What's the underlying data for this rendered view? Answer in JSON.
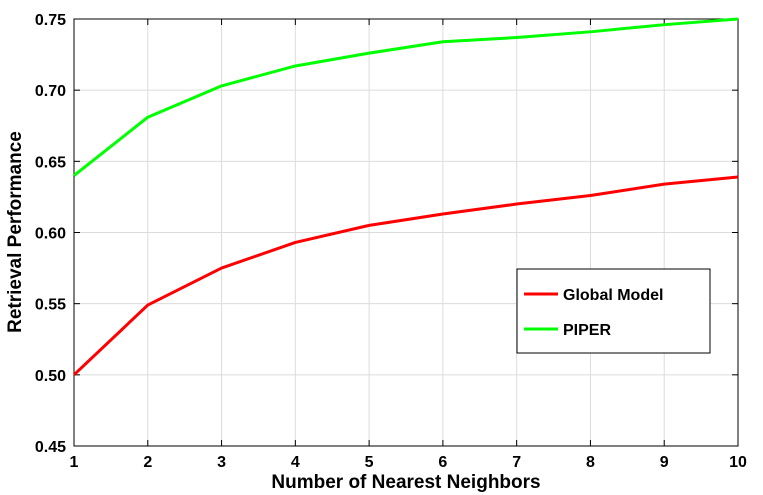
{
  "chart_data": {
    "type": "line",
    "x": [
      1,
      2,
      3,
      4,
      5,
      6,
      7,
      8,
      9,
      10
    ],
    "xlabel": "Number of Nearest Neighbors",
    "ylabel": "Retrieval Performance",
    "xlim": [
      1,
      10
    ],
    "ylim": [
      0.45,
      0.75
    ],
    "xticks": [
      "1",
      "2",
      "3",
      "4",
      "5",
      "6",
      "7",
      "8",
      "9",
      "10"
    ],
    "yticks": [
      "0.45",
      "0.50",
      "0.55",
      "0.60",
      "0.65",
      "0.70",
      "0.75"
    ],
    "grid": true,
    "legend_position": "right",
    "series": [
      {
        "name": "Global Model",
        "color": "#ff0000",
        "values": [
          0.5,
          0.549,
          0.575,
          0.593,
          0.605,
          0.613,
          0.62,
          0.626,
          0.634,
          0.639
        ]
      },
      {
        "name": "PIPER",
        "color": "#00ff00",
        "values": [
          0.64,
          0.681,
          0.703,
          0.717,
          0.726,
          0.734,
          0.737,
          0.741,
          0.746,
          0.75
        ]
      }
    ]
  }
}
